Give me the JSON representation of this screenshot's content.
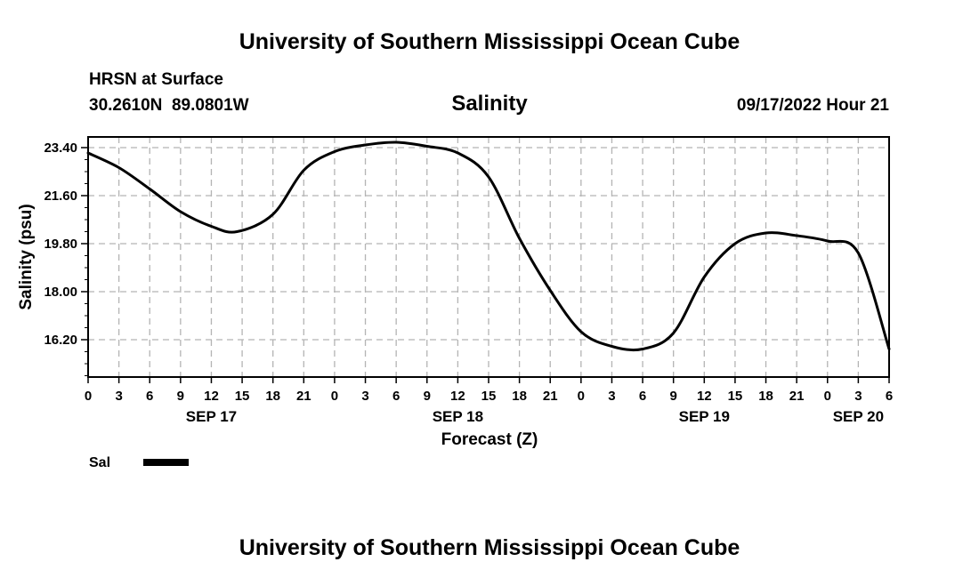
{
  "header": {
    "title": "University of Southern Mississippi Ocean Cube",
    "station": "HRSN at Surface",
    "coords": "30.2610N  89.0801W",
    "timestamp": "09/17/2022 Hour 21"
  },
  "footer": {
    "title": "University of Southern Mississippi Ocean Cube"
  },
  "legend": {
    "label": "Sal"
  },
  "colors": {
    "line": "#000000",
    "grid": "#b4b4b4",
    "background": "#ffffff"
  },
  "chart_data": {
    "type": "line",
    "title": "Salinity",
    "xlabel": "Forecast (Z)",
    "ylabel": "Salinity (psu)",
    "grid": true,
    "legend_position": "bottom-left",
    "xlim": [
      0,
      78
    ],
    "ylim": [
      14.8,
      23.8
    ],
    "x_ticks": [
      0,
      3,
      6,
      9,
      12,
      15,
      18,
      21,
      24,
      27,
      30,
      33,
      36,
      39,
      42,
      45,
      48,
      51,
      54,
      57,
      60,
      63,
      66,
      69,
      72,
      75,
      78
    ],
    "x_tick_labels": [
      "0",
      "3",
      "6",
      "9",
      "12",
      "15",
      "18",
      "21",
      "0",
      "3",
      "6",
      "9",
      "12",
      "15",
      "18",
      "21",
      "0",
      "3",
      "6",
      "9",
      "12",
      "15",
      "18",
      "21",
      "0",
      "3",
      "6"
    ],
    "date_labels": [
      {
        "x": 12,
        "label": "SEP 17"
      },
      {
        "x": 36,
        "label": "SEP 18"
      },
      {
        "x": 60,
        "label": "SEP 19"
      },
      {
        "x": 75,
        "label": "SEP 20"
      }
    ],
    "y_ticks": [
      16.2,
      18.0,
      19.8,
      21.6,
      23.4
    ],
    "y_tick_labels": [
      "16.20",
      "18.00",
      "19.80",
      "21.60",
      "23.40"
    ],
    "series": [
      {
        "name": "Sal",
        "x": [
          0,
          3,
          6,
          9,
          12,
          14.5,
          18,
          21,
          24,
          27,
          30,
          33,
          36,
          39,
          42,
          45,
          48,
          51,
          54,
          57,
          60,
          63,
          66,
          69,
          72,
          75,
          78
        ],
        "values": [
          23.2,
          22.65,
          21.85,
          21.0,
          20.45,
          20.25,
          20.9,
          22.55,
          23.25,
          23.5,
          23.6,
          23.45,
          23.2,
          22.3,
          20.0,
          18.05,
          16.5,
          15.95,
          15.85,
          16.45,
          18.55,
          19.8,
          20.2,
          20.1,
          19.9,
          19.45,
          15.85
        ]
      }
    ]
  }
}
